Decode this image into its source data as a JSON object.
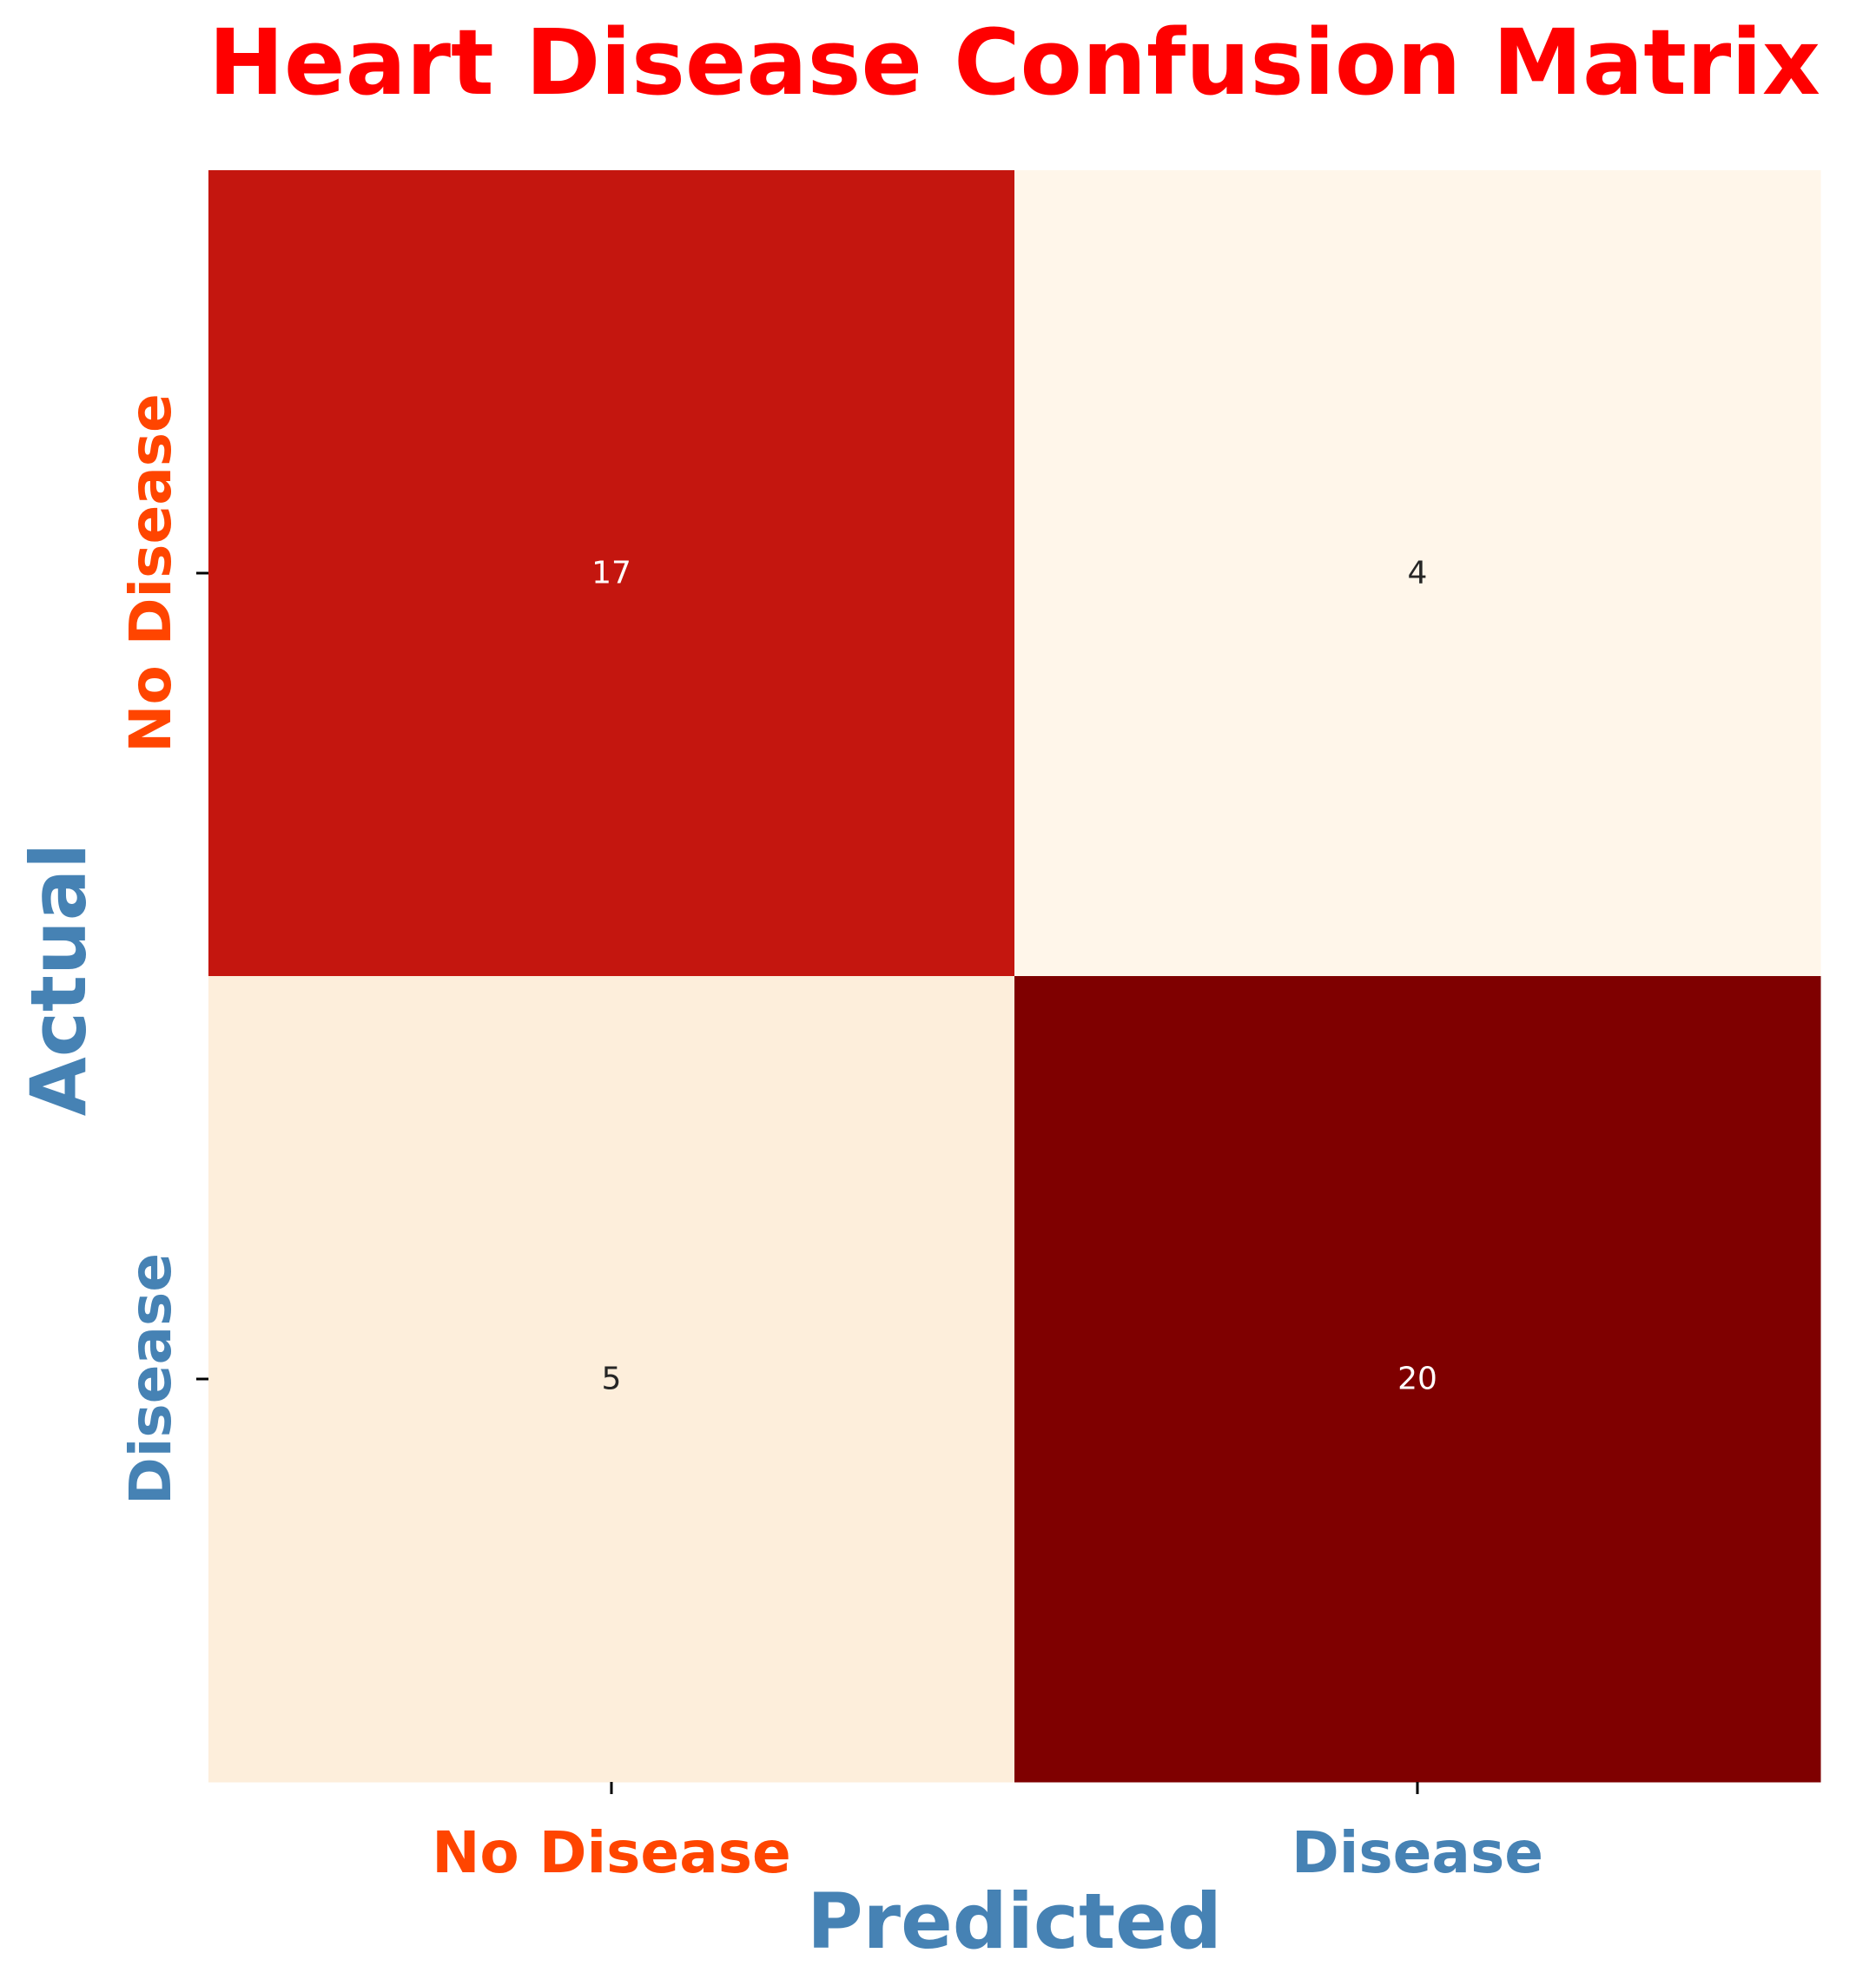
{
  "chart_data": {
    "type": "heatmap",
    "title": "Heart Disease Confusion Matrix",
    "xlabel": "Predicted",
    "ylabel": "Actual",
    "x_categories": [
      "No Disease",
      "Disease"
    ],
    "y_categories": [
      "No Disease",
      "Disease"
    ],
    "values": [
      [
        17,
        4
      ],
      [
        5,
        20
      ]
    ],
    "colormap": "OrRd",
    "colorbar": false,
    "colors": {
      "title": "#ff0000",
      "axis_label": "#4682b4",
      "tick_no_disease": "#ff4500",
      "tick_disease": "#4682b4",
      "cell_17": "#c4160f",
      "cell_4": "#fff6ea",
      "cell_5": "#fdeedb",
      "cell_20": "#7f0000",
      "annot_dark": "#ffffff",
      "annot_light": "#262626"
    }
  }
}
